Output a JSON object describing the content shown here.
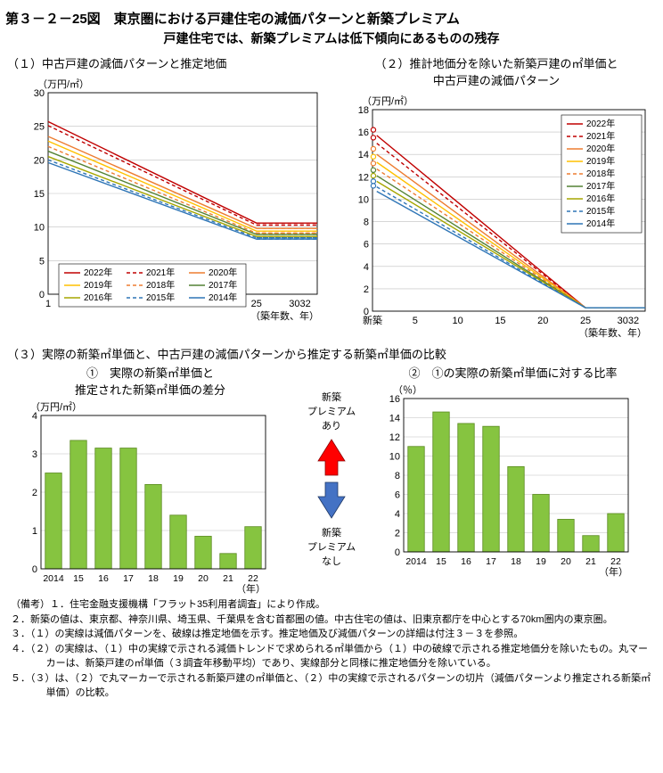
{
  "title_main": "第３－２－25図　東京圏における戸建住宅の減価パターンと新築プレミアム",
  "title_sub": "戸建住宅では、新築プレミアムは低下傾向にあるものの残存",
  "section1_title": "（１）中古戸建の減価パターンと推定地価",
  "section2_title": "（２）推計地価分を除いた新築戸建の㎡単価と\n中古戸建の減価パターン",
  "section3_title": "（３）実際の新築㎡単価と、中古戸建の減価パターンから推定する新築㎡単価の比較",
  "section3a_title": "①　実際の新築㎡単価と\n推定された新築㎡単価の差分",
  "section3b_title": "②　①の実際の新築㎡単価に対する比率",
  "yaxis_unit_man": "（万円/㎡）",
  "yaxis_unit_pct": "（％）",
  "xaxis_label_line": "（築年数、年）",
  "xaxis_label_bar": "（年）",
  "legend_years": [
    "2022年",
    "2021年",
    "2020年",
    "2019年",
    "2018年",
    "2017年",
    "2016年",
    "2015年",
    "2014年"
  ],
  "series_colors": {
    "2022年": "#c00000",
    "2021年": "#c00000",
    "2020年": "#ed7d31",
    "2019年": "#ffc000",
    "2018年": "#ed7d31",
    "2017年": "#548235",
    "2016年": "#a6a600",
    "2015年": "#2e75b6",
    "2014年": "#2e75b6"
  },
  "line_dash": {
    "2022年": "",
    "2021年": "4 3",
    "2020年": "",
    "2019年": "",
    "2018年": "4 3",
    "2017年": "",
    "2016年": "",
    "2015年": "4 3",
    "2014年": ""
  },
  "chart1": {
    "xlim": [
      1,
      32
    ],
    "ylim": [
      0,
      30
    ],
    "yticks": [
      0,
      5,
      10,
      15,
      20,
      25,
      30
    ],
    "xticks": [
      1,
      5,
      10,
      15,
      20,
      25,
      30,
      32
    ],
    "xtick_labels": [
      "1",
      "5",
      "10",
      "15",
      "20",
      "25",
      "3032"
    ],
    "solid": {
      "2022年": [
        [
          1,
          25.7
        ],
        [
          25,
          10.6
        ],
        [
          32,
          10.6
        ]
      ],
      "2021年": [
        [
          1,
          25.1
        ],
        [
          25,
          10.3
        ],
        [
          32,
          10.3
        ]
      ],
      "2020年": [
        [
          1,
          23.5
        ],
        [
          25,
          9.8
        ],
        [
          32,
          9.8
        ]
      ],
      "2019年": [
        [
          1,
          22.8
        ],
        [
          25,
          9.4
        ],
        [
          32,
          9.4
        ]
      ],
      "2018年": [
        [
          1,
          22.0
        ],
        [
          25,
          9.1
        ],
        [
          32,
          9.1
        ]
      ],
      "2017年": [
        [
          1,
          21.3
        ],
        [
          25,
          8.9
        ],
        [
          32,
          8.9
        ]
      ],
      "2016年": [
        [
          1,
          20.5
        ],
        [
          25,
          8.6
        ],
        [
          32,
          8.6
        ]
      ],
      "2015年": [
        [
          1,
          20.0
        ],
        [
          25,
          8.4
        ],
        [
          32,
          8.4
        ]
      ],
      "2014年": [
        [
          1,
          19.6
        ],
        [
          25,
          8.2
        ],
        [
          32,
          8.2
        ]
      ]
    },
    "dashed": {
      "2022年": [
        [
          25,
          10.6
        ],
        [
          32,
          10.6
        ]
      ],
      "2021年": [
        [
          25,
          10.3
        ],
        [
          32,
          10.3
        ]
      ],
      "2020年": [
        [
          25,
          9.8
        ],
        [
          32,
          9.8
        ]
      ],
      "2019年": [
        [
          25,
          9.4
        ],
        [
          32,
          9.4
        ]
      ],
      "2018年": [
        [
          25,
          9.1
        ],
        [
          32,
          9.1
        ]
      ],
      "2017年": [
        [
          25,
          8.9
        ],
        [
          32,
          8.9
        ]
      ],
      "2016年": [
        [
          25,
          8.6
        ],
        [
          32,
          8.6
        ]
      ],
      "2015年": [
        [
          25,
          8.4
        ],
        [
          32,
          8.4
        ]
      ],
      "2014年": [
        [
          25,
          8.2
        ],
        [
          32,
          8.2
        ]
      ]
    }
  },
  "chart2": {
    "xlim": [
      0,
      32
    ],
    "ylim": [
      0,
      18
    ],
    "yticks": [
      0,
      2,
      4,
      6,
      8,
      10,
      12,
      14,
      16,
      18
    ],
    "xticks": [
      0,
      5,
      10,
      15,
      20,
      25,
      30,
      32
    ],
    "xtick_labels": [
      "新築",
      "5",
      "10",
      "15",
      "20",
      "25",
      "3032"
    ],
    "lines": {
      "2022年": [
        [
          0.5,
          15.7
        ],
        [
          25,
          0.3
        ],
        [
          32,
          0.3
        ]
      ],
      "2021年": [
        [
          0.5,
          15.0
        ],
        [
          25,
          0.3
        ],
        [
          32,
          0.3
        ]
      ],
      "2020年": [
        [
          0.5,
          14.0
        ],
        [
          25,
          0.3
        ],
        [
          32,
          0.3
        ]
      ],
      "2019年": [
        [
          0.5,
          13.3
        ],
        [
          25,
          0.3
        ],
        [
          32,
          0.3
        ]
      ],
      "2018年": [
        [
          0.5,
          12.7
        ],
        [
          25,
          0.3
        ],
        [
          32,
          0.3
        ]
      ],
      "2017年": [
        [
          0.5,
          12.1
        ],
        [
          25,
          0.3
        ],
        [
          32,
          0.3
        ]
      ],
      "2016年": [
        [
          0.5,
          11.6
        ],
        [
          25,
          0.3
        ],
        [
          32,
          0.3
        ]
      ],
      "2015年": [
        [
          0.5,
          11.1
        ],
        [
          25,
          0.3
        ],
        [
          32,
          0.3
        ]
      ],
      "2014年": [
        [
          0.5,
          10.7
        ],
        [
          25,
          0.3
        ],
        [
          32,
          0.3
        ]
      ]
    },
    "markers": {
      "2022年": [
        0.1,
        16.2
      ],
      "2021年": [
        0.1,
        15.5
      ],
      "2020年": [
        0.1,
        14.5
      ],
      "2019年": [
        0.1,
        13.8
      ],
      "2018年": [
        0.1,
        13.2
      ],
      "2017年": [
        0.1,
        12.6
      ],
      "2016年": [
        0.1,
        12.1
      ],
      "2015年": [
        0.1,
        11.6
      ],
      "2014年": [
        0.1,
        11.2
      ]
    }
  },
  "chart3a": {
    "ylim": [
      0,
      4
    ],
    "yticks": [
      0,
      1,
      2,
      3,
      4
    ],
    "categories": [
      "2014",
      "15",
      "16",
      "17",
      "18",
      "19",
      "20",
      "21",
      "22"
    ],
    "values": [
      2.5,
      3.35,
      3.15,
      3.15,
      2.2,
      1.4,
      0.85,
      0.4,
      1.1
    ],
    "bar_fill": "#86c440",
    "bar_stroke": "#5a8a1f"
  },
  "chart3b": {
    "ylim": [
      0,
      16
    ],
    "yticks": [
      0,
      2,
      4,
      6,
      8,
      10,
      12,
      14,
      16
    ],
    "categories": [
      "2014",
      "15",
      "16",
      "17",
      "18",
      "19",
      "20",
      "21",
      "22"
    ],
    "values": [
      11.0,
      14.6,
      13.4,
      13.1,
      8.9,
      6.0,
      3.4,
      1.7,
      4.0
    ],
    "bar_fill": "#86c440",
    "bar_stroke": "#5a8a1f"
  },
  "center_arrow": {
    "top": "新築\nプレミアム\nあり",
    "bot": "新築\nプレミアム\nなし",
    "up_color": "#ff0000",
    "down_color": "#4472c4"
  },
  "notes": [
    "（備考）１．住宅金融支援機構「フラット35利用者調査」により作成。",
    "２．新築の値は、東京都、神奈川県、埼玉県、千葉県を含む首都圏の値。中古住宅の値は、旧東京都庁を中心とする70km圏内の東京圏。",
    "３．（１）の実線は減価パターンを、破線は推定地価を示す。推定地価及び減価パターンの詳細は付注３－３を参照。",
    "４．（２）の実線は、（１）中の実線で示される減価トレンドで求められる㎡単価から（１）中の破線で示される推定地価分を除いたもの。丸マーカーは、新築戸建の㎡単価（３調査年移動平均）であり、実線部分と同様に推定地価分を除いている。",
    "５．（３）は、（２）で丸マーカーで示される新築戸建の㎡単価と、（２）中の実線で示されるパターンの切片（減価パターンより推定される新築㎡単価）の比較。"
  ],
  "grid_color": "#bfbfbf",
  "axis_color": "#000000",
  "tick_font": "11"
}
